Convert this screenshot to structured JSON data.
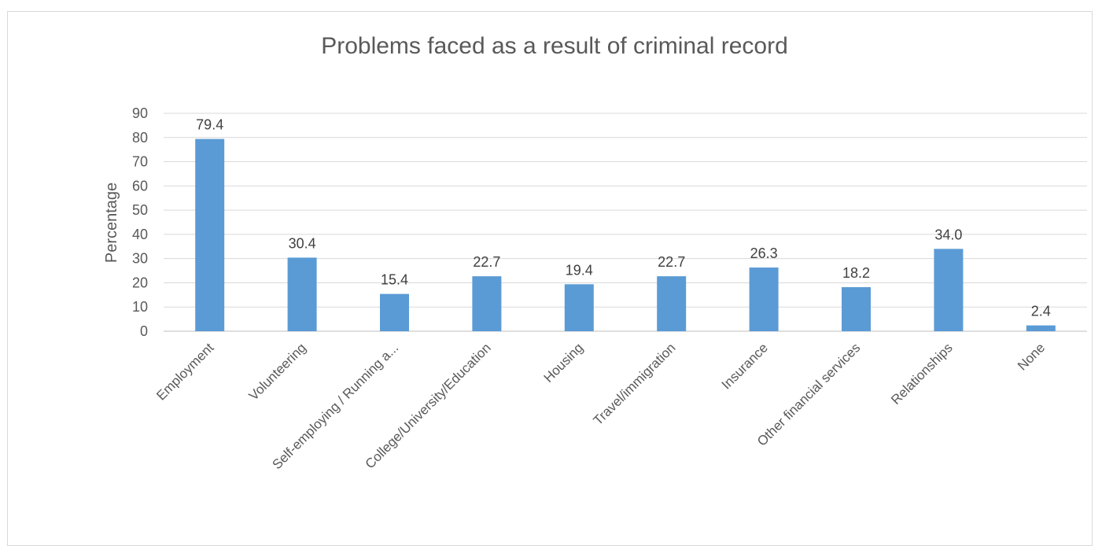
{
  "chart_data": {
    "type": "bar",
    "title": "Problems faced as a result of criminal record",
    "ylabel": "Percentage",
    "xlabel": "",
    "ylim": [
      0,
      90
    ],
    "yticks": [
      0,
      10,
      20,
      30,
      40,
      50,
      60,
      70,
      80,
      90
    ],
    "grid": true,
    "bar_color": "#5b9bd5",
    "categories": [
      "Employment",
      "Volunteering",
      "Self-employing / Running a...",
      "College/University/Education",
      "Housing",
      "Travel/immigration",
      "Insurance",
      "Other financial services",
      "Relationships",
      "None"
    ],
    "values": [
      79.4,
      30.4,
      15.4,
      22.7,
      19.4,
      22.7,
      26.3,
      18.2,
      34.0,
      2.4
    ],
    "data_labels": [
      "79.4",
      "30.4",
      "15.4",
      "22.7",
      "19.4",
      "22.7",
      "26.3",
      "18.2",
      "34.0",
      "2.4"
    ]
  }
}
